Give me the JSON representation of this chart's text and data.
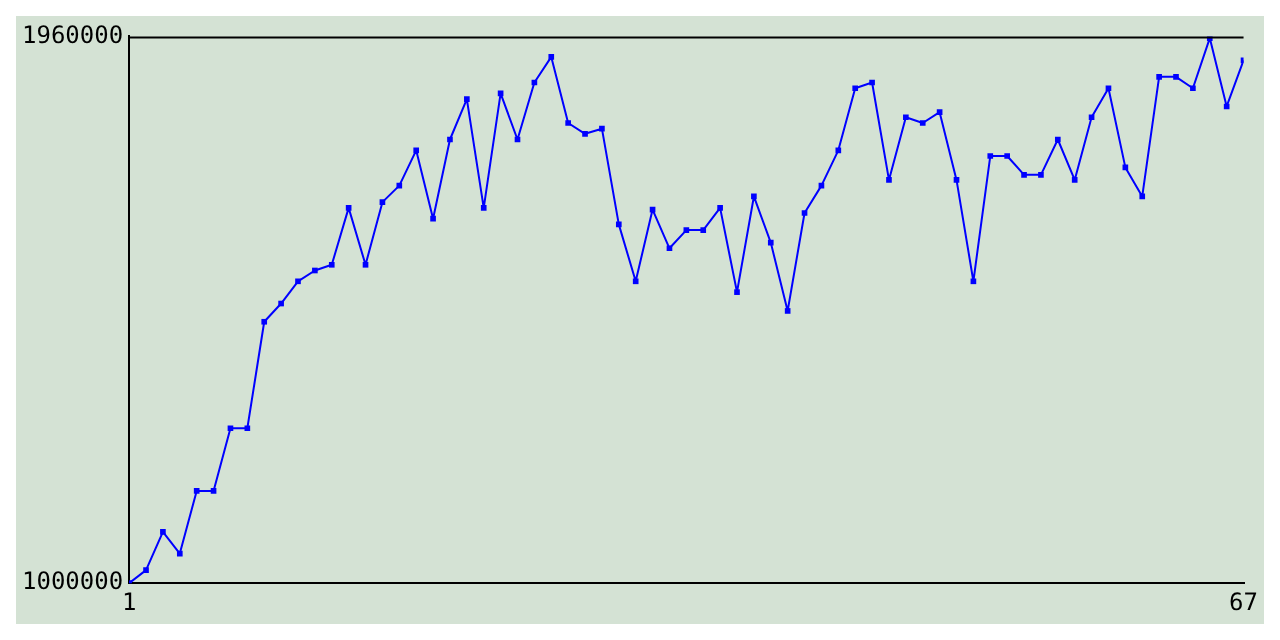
{
  "chart_data": {
    "type": "line",
    "x": [
      1,
      2,
      3,
      4,
      5,
      6,
      7,
      8,
      9,
      10,
      11,
      12,
      13,
      14,
      15,
      16,
      17,
      18,
      19,
      20,
      21,
      22,
      23,
      24,
      25,
      26,
      27,
      28,
      29,
      30,
      31,
      32,
      33,
      34,
      35,
      36,
      37,
      38,
      39,
      40,
      41,
      42,
      43,
      44,
      45,
      46,
      47,
      48,
      49,
      50,
      51,
      52,
      53,
      54,
      55,
      56,
      57,
      58,
      59,
      60,
      61,
      62,
      63,
      64,
      65,
      66,
      67
    ],
    "series": [
      {
        "color": "#0000ff",
        "values": [
          1000000,
          1023000,
          1090000,
          1052000,
          1162000,
          1162000,
          1272000,
          1272000,
          1459000,
          1491000,
          1530000,
          1549000,
          1559000,
          1659000,
          1559000,
          1669000,
          1698000,
          1760000,
          1640000,
          1779000,
          1850000,
          1659000,
          1860000,
          1779000,
          1879000,
          1924000,
          1808000,
          1789000,
          1798000,
          1630000,
          1530000,
          1656000,
          1588000,
          1620000,
          1620000,
          1659000,
          1511000,
          1679000,
          1598000,
          1478000,
          1650000,
          1698000,
          1760000,
          1869000,
          1879000,
          1708000,
          1818000,
          1808000,
          1827000,
          1708000,
          1530000,
          1750000,
          1750000,
          1717000,
          1717000,
          1779000,
          1708000,
          1818000,
          1869000,
          1730000,
          1679000,
          1889000,
          1889000,
          1869000,
          1957000,
          1837000,
          1918000
        ]
      }
    ],
    "xlim": [
      1,
      67
    ],
    "xticks": [
      1,
      67
    ],
    "ylim": [
      1000000,
      1960000
    ],
    "yticks": [
      1000000,
      1960000
    ],
    "grid": false,
    "legend": false,
    "marker": "square",
    "line_style": "solid"
  }
}
